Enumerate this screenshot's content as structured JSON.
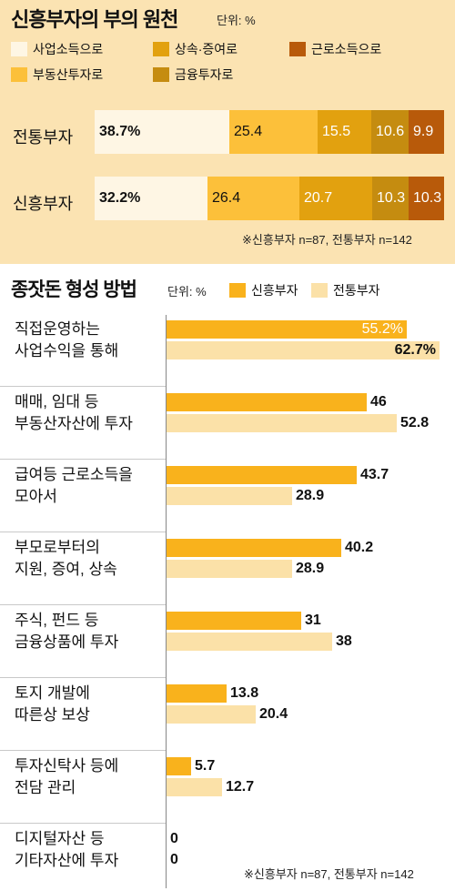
{
  "colors": {
    "panel_bg": "#fbe3b2",
    "salary": "#fef6e4",
    "realestate": "#fcc03a",
    "inheritance": "#e2a10f",
    "finance": "#c58c10",
    "labor": "#b85a0a",
    "new_rich": "#f9b21c",
    "old_rich": "#fbe1a8"
  },
  "chart_data": [
    {
      "type": "bar",
      "subtype": "stacked-horizontal-100",
      "title": "신흥부자의 부의 원천",
      "unit": "단위: %",
      "categories": [
        "전통부자",
        "신흥부자"
      ],
      "series": [
        {
          "name": "사업소득으로",
          "color": "#fef6e4",
          "values": [
            38.7,
            32.2
          ]
        },
        {
          "name": "부동산투자로",
          "color": "#fcc03a",
          "values": [
            25.4,
            26.4
          ]
        },
        {
          "name": "상속·증여로",
          "color": "#e2a10f",
          "values": [
            15.5,
            20.7
          ]
        },
        {
          "name": "금융투자로",
          "color": "#c58c10",
          "values": [
            10.6,
            10.3
          ]
        },
        {
          "name": "근로소득으로",
          "color": "#b85a0a",
          "values": [
            9.9,
            10.3
          ]
        }
      ],
      "labels": [
        [
          "38.7%",
          "25.4",
          "15.5",
          "10.6",
          "9.9"
        ],
        [
          "32.2%",
          "26.4",
          "20.7",
          "10.3",
          "10.3"
        ]
      ],
      "footnote": "※신흥부자 n=87, 전통부자 n=142"
    },
    {
      "type": "bar",
      "subtype": "grouped-horizontal",
      "title": "종잣돈 형성 방법",
      "unit": "단위: %",
      "categories": [
        "직접운영하는\n사업수익을 통해",
        "매매, 임대 등\n부동산자산에 투자",
        "급여등 근로소득을\n모아서",
        "부모로부터의\n지원, 증여, 상속",
        "주식, 펀드 등\n금융상품에 투자",
        "토지 개발에\n따른상 보상",
        "투자신탁사 등에\n전담 관리",
        "디지털자산 등\n기타자산에 투자"
      ],
      "series": [
        {
          "name": "신흥부자",
          "color": "#f9b21c",
          "values": [
            55.2,
            46,
            43.7,
            40.2,
            31,
            13.8,
            5.7,
            0
          ]
        },
        {
          "name": "전통부자",
          "color": "#fbe1a8",
          "values": [
            62.7,
            52.8,
            28.9,
            28.9,
            38,
            20.4,
            12.7,
            0
          ]
        }
      ],
      "labels": [
        [
          "55.2%",
          "46",
          "43.7",
          "40.2",
          "31",
          "13.8",
          "5.7",
          "0"
        ],
        [
          "62.7%",
          "52.8",
          "28.9",
          "28.9",
          "38",
          "20.4",
          "12.7",
          "0"
        ]
      ],
      "xlim": [
        0,
        62.7
      ],
      "footnote": "※신흥부자 n=87, 전통부자 n=142"
    }
  ]
}
